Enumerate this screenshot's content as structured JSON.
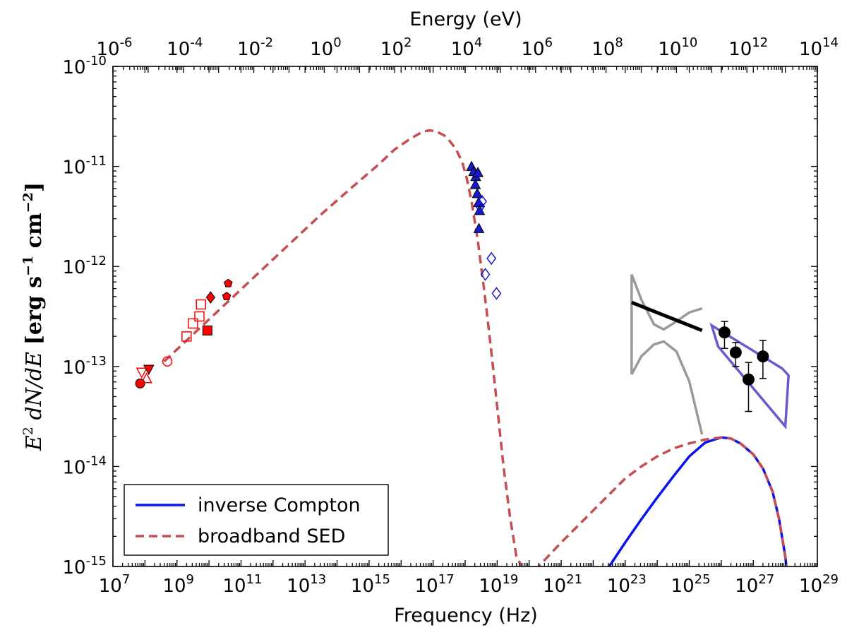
{
  "chart_data": {
    "type": "line",
    "xlabel": "Frequency (Hz)",
    "top_xlabel": "Energy (eV)",
    "ylabel": "E^2 dN/dE [erg s^-1 cm^-2]",
    "ylabel_parts": {
      "lhs": "E",
      "lhs_exp": "2",
      "lhs_rest": " dN/dE ",
      "unit_open": "[erg s",
      "s_exp": "−1",
      "unit_mid": " cm",
      "cm_exp": "−2",
      "unit_close": "]"
    },
    "xscale": "log",
    "yscale": "log",
    "xlim_log10": [
      7,
      29
    ],
    "ylim_log10": [
      -15,
      -10
    ],
    "top_xlim_log10": [
      -6,
      14
    ],
    "x_ticks": [
      {
        "base": "10",
        "exp": "7",
        "log": 7
      },
      {
        "base": "10",
        "exp": "9",
        "log": 9
      },
      {
        "base": "10",
        "exp": "11",
        "log": 11
      },
      {
        "base": "10",
        "exp": "13",
        "log": 13
      },
      {
        "base": "10",
        "exp": "15",
        "log": 15
      },
      {
        "base": "10",
        "exp": "17",
        "log": 17
      },
      {
        "base": "10",
        "exp": "19",
        "log": 19
      },
      {
        "base": "10",
        "exp": "21",
        "log": 21
      },
      {
        "base": "10",
        "exp": "23",
        "log": 23
      },
      {
        "base": "10",
        "exp": "25",
        "log": 25
      },
      {
        "base": "10",
        "exp": "27",
        "log": 27
      },
      {
        "base": "10",
        "exp": "29",
        "log": 29
      }
    ],
    "top_ticks": [
      {
        "base": "10",
        "exp": "-6",
        "log": -6
      },
      {
        "base": "10",
        "exp": "-4",
        "log": -4
      },
      {
        "base": "10",
        "exp": "-2",
        "log": -2
      },
      {
        "base": "10",
        "exp": "0",
        "log": 0
      },
      {
        "base": "10",
        "exp": "2",
        "log": 2
      },
      {
        "base": "10",
        "exp": "4",
        "log": 4
      },
      {
        "base": "10",
        "exp": "6",
        "log": 6
      },
      {
        "base": "10",
        "exp": "8",
        "log": 8
      },
      {
        "base": "10",
        "exp": "10",
        "log": 10
      },
      {
        "base": "10",
        "exp": "12",
        "log": 12
      },
      {
        "base": "10",
        "exp": "14",
        "log": 14
      }
    ],
    "y_ticks": [
      {
        "base": "10",
        "exp": "-10",
        "log": -10
      },
      {
        "base": "10",
        "exp": "-11",
        "log": -11
      },
      {
        "base": "10",
        "exp": "-12",
        "log": -12
      },
      {
        "base": "10",
        "exp": "-13",
        "log": -13
      },
      {
        "base": "10",
        "exp": "-14",
        "log": -14
      },
      {
        "base": "10",
        "exp": "-15",
        "log": -15
      }
    ],
    "series": [
      {
        "name": "inverse Compton",
        "style": "solid",
        "color": "#0a14ee",
        "points_log10": [
          [
            22.1,
            -15.2
          ],
          [
            22.5,
            -15.0
          ],
          [
            23.0,
            -14.76
          ],
          [
            23.5,
            -14.53
          ],
          [
            24.0,
            -14.31
          ],
          [
            24.5,
            -14.1
          ],
          [
            25.0,
            -13.9
          ],
          [
            25.5,
            -13.76
          ],
          [
            26.0,
            -13.71
          ],
          [
            26.3,
            -13.72
          ],
          [
            26.6,
            -13.77
          ],
          [
            27.0,
            -13.88
          ],
          [
            27.3,
            -14.02
          ],
          [
            27.6,
            -14.25
          ],
          [
            27.8,
            -14.52
          ],
          [
            28.0,
            -14.9
          ],
          [
            28.1,
            -15.2
          ]
        ]
      },
      {
        "name": "broadband SED",
        "style": "dashed",
        "color": "#c44e52",
        "points_log10": [
          [
            8.6,
            -12.95
          ],
          [
            9.5,
            -12.68
          ],
          [
            10.5,
            -12.38
          ],
          [
            11.5,
            -12.08
          ],
          [
            12.5,
            -11.78
          ],
          [
            13.5,
            -11.48
          ],
          [
            14.5,
            -11.2
          ],
          [
            15.3,
            -10.98
          ],
          [
            15.8,
            -10.83
          ],
          [
            16.3,
            -10.72
          ],
          [
            16.7,
            -10.65
          ],
          [
            16.9,
            -10.64
          ],
          [
            17.1,
            -10.65
          ],
          [
            17.4,
            -10.7
          ],
          [
            17.7,
            -10.82
          ],
          [
            17.9,
            -10.95
          ],
          [
            18.05,
            -11.12
          ],
          [
            18.2,
            -11.35
          ],
          [
            18.4,
            -11.75
          ],
          [
            18.6,
            -12.25
          ],
          [
            18.8,
            -12.8
          ],
          [
            19.0,
            -13.4
          ],
          [
            19.2,
            -14.0
          ],
          [
            19.4,
            -14.5
          ],
          [
            19.6,
            -14.9
          ],
          [
            19.8,
            -15.02
          ],
          [
            20.0,
            -15.1
          ],
          [
            20.5,
            -14.93
          ],
          [
            21.0,
            -14.76
          ],
          [
            21.5,
            -14.6
          ],
          [
            22.0,
            -14.44
          ],
          [
            22.5,
            -14.28
          ],
          [
            23.0,
            -14.12
          ],
          [
            23.5,
            -14.0
          ],
          [
            24.0,
            -13.9
          ],
          [
            24.5,
            -13.82
          ],
          [
            25.0,
            -13.77
          ],
          [
            25.5,
            -13.73
          ],
          [
            26.0,
            -13.71
          ],
          [
            26.3,
            -13.72
          ],
          [
            26.6,
            -13.77
          ],
          [
            27.0,
            -13.88
          ],
          [
            27.3,
            -14.02
          ],
          [
            27.6,
            -14.25
          ],
          [
            27.8,
            -14.52
          ],
          [
            28.0,
            -14.9
          ],
          [
            28.1,
            -15.2
          ]
        ]
      }
    ],
    "markers": [
      {
        "marker": "circle",
        "filled": true,
        "color": "red",
        "x": 7.85,
        "y": -13.17
      },
      {
        "marker": "triangle-down",
        "filled": false,
        "color": "red",
        "x": 7.9,
        "y": -13.06
      },
      {
        "marker": "triangle-up",
        "filled": false,
        "color": "red",
        "x": 8.05,
        "y": -13.12
      },
      {
        "marker": "triangle-down",
        "filled": true,
        "color": "red",
        "x": 8.12,
        "y": -13.03
      },
      {
        "marker": "circle",
        "filled": false,
        "color": "red",
        "x": 8.7,
        "y": -12.95
      },
      {
        "marker": "square",
        "filled": false,
        "color": "red",
        "x": 9.3,
        "y": -12.7
      },
      {
        "marker": "square",
        "filled": false,
        "color": "red",
        "x": 9.5,
        "y": -12.57
      },
      {
        "marker": "square",
        "filled": false,
        "color": "red",
        "x": 9.7,
        "y": -12.5
      },
      {
        "marker": "square",
        "filled": false,
        "color": "red",
        "x": 9.75,
        "y": -12.38
      },
      {
        "marker": "square",
        "filled": true,
        "color": "red",
        "x": 9.95,
        "y": -12.64
      },
      {
        "marker": "diamond",
        "filled": true,
        "color": "red",
        "x": 10.05,
        "y": -12.31
      },
      {
        "marker": "pentagon",
        "filled": true,
        "color": "red",
        "x": 10.55,
        "y": -12.3
      },
      {
        "marker": "pentagon",
        "filled": true,
        "color": "red",
        "x": 10.6,
        "y": -12.17
      },
      {
        "marker": "triangle-up",
        "filled": true,
        "color": "#1818d0",
        "x": 18.2,
        "y": -11.0
      },
      {
        "marker": "triangle-up",
        "filled": true,
        "color": "#1818d0",
        "x": 18.27,
        "y": -11.05
      },
      {
        "marker": "triangle-up",
        "filled": true,
        "color": "#1818d0",
        "x": 18.33,
        "y": -11.1
      },
      {
        "marker": "triangle-up",
        "filled": true,
        "color": "#1818d0",
        "x": 18.4,
        "y": -11.06
      },
      {
        "marker": "triangle-up",
        "filled": true,
        "color": "#1818d0",
        "x": 18.32,
        "y": -11.18
      },
      {
        "marker": "triangle-up",
        "filled": true,
        "color": "#1818d0",
        "x": 18.38,
        "y": -11.27
      },
      {
        "marker": "triangle-up",
        "filled": true,
        "color": "#1818d0",
        "x": 18.42,
        "y": -11.36
      },
      {
        "marker": "triangle-up",
        "filled": true,
        "color": "#1818d0",
        "x": 18.45,
        "y": -11.44
      },
      {
        "marker": "triangle-up",
        "filled": true,
        "color": "#1818d0",
        "x": 18.43,
        "y": -11.62
      },
      {
        "marker": "diamond",
        "filled": false,
        "color": "#1818d0",
        "x": 18.53,
        "y": -11.35
      },
      {
        "marker": "diamond",
        "filled": false,
        "color": "#1818d0",
        "x": 18.47,
        "y": -11.4
      },
      {
        "marker": "diamond",
        "filled": false,
        "color": "#1818d0",
        "x": 18.82,
        "y": -11.92
      },
      {
        "marker": "diamond",
        "filled": false,
        "color": "#1818d0",
        "x": 18.63,
        "y": -12.08
      },
      {
        "marker": "diamond",
        "filled": false,
        "color": "#1818d0",
        "x": 18.98,
        "y": -12.27
      }
    ],
    "hess_points": [
      {
        "x": 26.1,
        "y": -12.66,
        "err_low": -12.82,
        "err_high": -12.55
      },
      {
        "x": 26.45,
        "y": -12.86,
        "err_low": -13.0,
        "err_high": -12.76
      },
      {
        "x": 26.85,
        "y": -13.13,
        "err_low": -13.45,
        "err_high": -12.96
      },
      {
        "x": 27.3,
        "y": -12.9,
        "err_low": -13.12,
        "err_high": -12.74
      }
    ],
    "gray_bowtie": {
      "x_left": 23.2,
      "x_right": 25.4,
      "upper_log10": [
        [
          23.2,
          -12.08
        ],
        [
          23.5,
          -12.33
        ],
        [
          23.9,
          -12.58
        ],
        [
          24.2,
          -12.63
        ],
        [
          24.6,
          -12.55
        ],
        [
          25.0,
          -12.46
        ],
        [
          25.4,
          -12.42
        ]
      ],
      "lower_log10": [
        [
          23.2,
          -13.08
        ],
        [
          23.5,
          -12.9
        ],
        [
          23.9,
          -12.78
        ],
        [
          24.2,
          -12.75
        ],
        [
          24.6,
          -12.85
        ],
        [
          25.0,
          -13.15
        ],
        [
          25.4,
          -13.68
        ]
      ]
    },
    "black_line": {
      "x1": 23.2,
      "y1": -12.36,
      "x2": 25.4,
      "y2": -12.64
    },
    "blue_bowtie_log10": [
      [
        25.7,
        -12.59
      ],
      [
        27.9,
        -13.02
      ],
      [
        28.1,
        -13.09
      ],
      [
        28.0,
        -13.6
      ],
      [
        25.9,
        -12.8
      ]
    ],
    "legend": {
      "position": "lower-left",
      "entries": [
        {
          "label": "inverse Compton",
          "style": "solid",
          "color": "#0a14ee"
        },
        {
          "label": "broadband SED",
          "style": "dashed",
          "color": "#c44e52"
        }
      ]
    }
  }
}
